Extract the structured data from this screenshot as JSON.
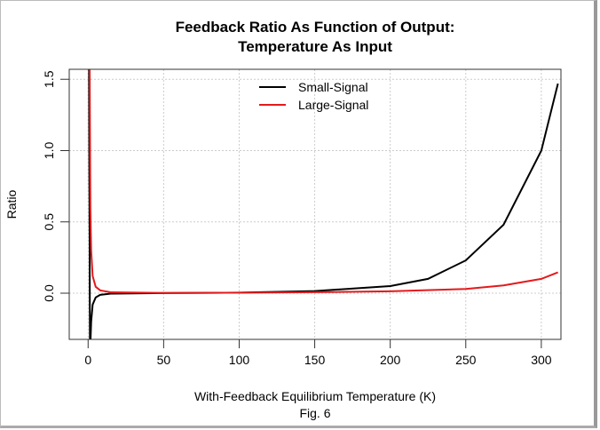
{
  "chart_data": {
    "type": "line",
    "title": [
      "Feedback Ratio As Function of Output:",
      "Temperature As Input"
    ],
    "xlabel": "With-Feedback Equilibrium Temperature (K)",
    "caption": "Fig. 6",
    "ylabel": "Ratio",
    "xlim": [
      -12.5,
      313
    ],
    "ylim": [
      -0.324,
      1.57
    ],
    "xticks": [
      0,
      50,
      100,
      150,
      200,
      250,
      300
    ],
    "yticks": [
      0.0,
      0.5,
      1.0,
      1.5
    ],
    "ytick_labels": [
      "0.0",
      "0.5",
      "1.0",
      "1.5"
    ],
    "grid": true,
    "legend_position": "top-center",
    "series": [
      {
        "name": "Small-Signal",
        "color": "#000000",
        "points": [
          [
            0.6,
            1.6
          ],
          [
            0.8,
            0.9
          ],
          [
            1.0,
            0.35
          ],
          [
            1.2,
            -0.33
          ],
          null,
          [
            1.6,
            -0.33
          ],
          [
            2,
            -0.2
          ],
          [
            3,
            -0.08
          ],
          [
            5,
            -0.03
          ],
          [
            8,
            -0.012
          ],
          [
            15,
            -0.003
          ],
          [
            50,
            0.0005
          ],
          [
            100,
            0.004
          ],
          [
            150,
            0.015
          ],
          [
            200,
            0.05
          ],
          [
            225,
            0.1
          ],
          [
            250,
            0.23
          ],
          [
            275,
            0.48
          ],
          [
            300,
            1.0
          ],
          [
            311,
            1.47
          ]
        ]
      },
      {
        "name": "Large-Signal",
        "color": "#e31a1c",
        "points": [
          [
            1.0,
            1.6
          ],
          [
            1.5,
            0.6
          ],
          [
            2,
            0.3
          ],
          [
            3,
            0.12
          ],
          [
            5,
            0.045
          ],
          [
            8,
            0.02
          ],
          [
            15,
            0.006
          ],
          [
            50,
            0.001
          ],
          [
            100,
            0.003
          ],
          [
            150,
            0.007
          ],
          [
            200,
            0.013
          ],
          [
            250,
            0.03
          ],
          [
            275,
            0.055
          ],
          [
            300,
            0.1
          ],
          [
            311,
            0.146
          ]
        ]
      }
    ]
  }
}
